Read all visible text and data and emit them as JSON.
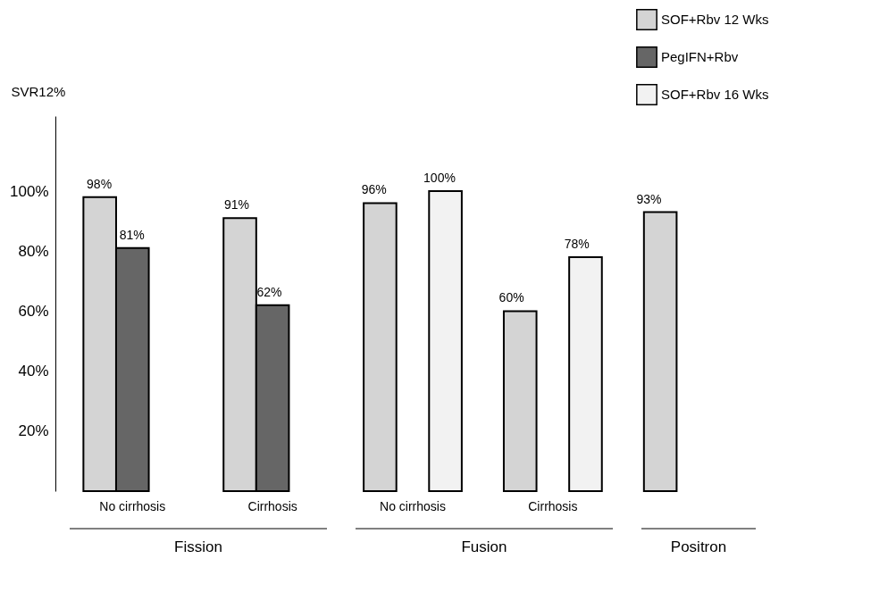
{
  "chart_data": {
    "type": "bar",
    "ylabel": "SVR12%",
    "categories": [
      "No cirrhosis",
      "Cirrhosis",
      "No cirrhosis",
      "Cirrhosis",
      null
    ],
    "series": [
      {
        "name": "SOF+Rbv 12 Wks",
        "color": "#d4d4d4",
        "values": [
          98,
          91,
          96,
          60,
          93
        ],
        "value_labels": [
          "98%",
          "91%",
          "96%",
          "60%",
          "93%"
        ]
      },
      {
        "name": "PegIFN+Rbv",
        "color": "#666666",
        "values": [
          81,
          62,
          null,
          null,
          null
        ],
        "value_labels": [
          "81%",
          "62%",
          null,
          null,
          null
        ]
      },
      {
        "name": "SOF+Rbv 16 Wks",
        "color": "#f2f2f2",
        "values": [
          null,
          null,
          100,
          78,
          null
        ],
        "value_labels": [
          null,
          null,
          "100%",
          "78%",
          null
        ]
      }
    ],
    "ylim": [
      0,
      125
    ],
    "yticks": [
      {
        "value": 20,
        "label": "20%"
      },
      {
        "value": 40,
        "label": "40%"
      },
      {
        "value": 60,
        "label": "60%"
      },
      {
        "value": 80,
        "label": "80%"
      },
      {
        "value": 100,
        "label": "100%"
      }
    ],
    "annotations": [
      "Fission",
      "Fusion",
      "Positron"
    ],
    "legend": "top right",
    "grid": false
  }
}
